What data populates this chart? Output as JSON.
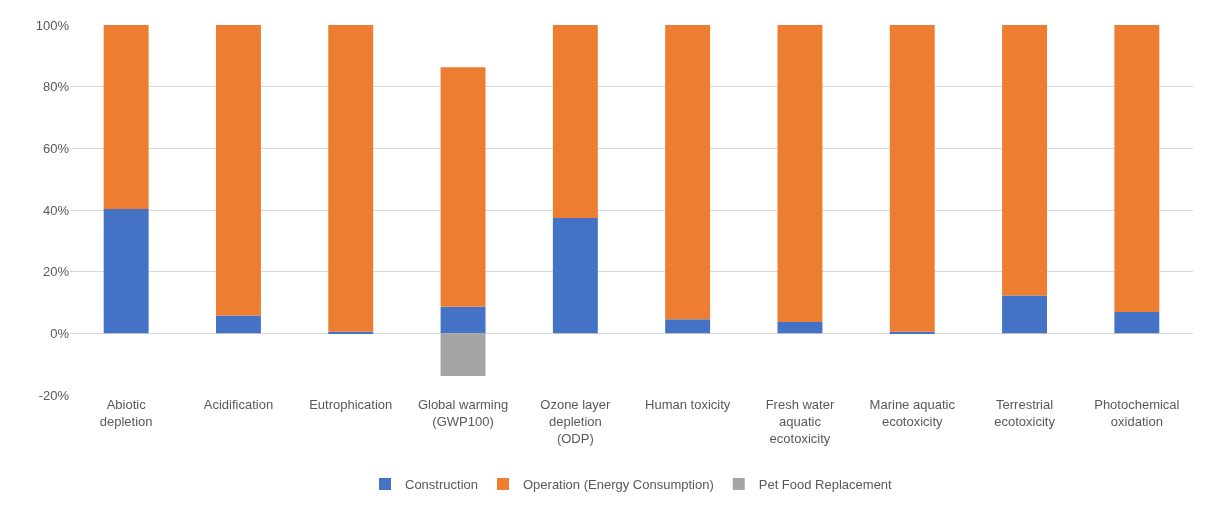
{
  "chart_data": {
    "type": "bar",
    "stacked": true,
    "categories": [
      "Abiotic depletion",
      "Acidification",
      "Eutrophication",
      "Global warming (GWP100)",
      "Ozone layer depletion (ODP)",
      "Human toxicity",
      "Fresh water aquatic ecotoxicity",
      "Marine aquatic ecotoxicity",
      "Terrestrial ecotoxicity",
      "Photochemical oxidation"
    ],
    "series": [
      {
        "name": "Construction",
        "color": "#4472c4",
        "values": [
          40.3,
          5.8,
          0.5,
          8.6,
          37.4,
          4.6,
          3.7,
          0.5,
          12.3,
          6.9
        ]
      },
      {
        "name": "Operation (Energy Consumption)",
        "color": "#ed7d31",
        "values": [
          59.7,
          94.2,
          99.5,
          77.7,
          62.6,
          95.4,
          96.3,
          99.5,
          87.7,
          93.1
        ]
      },
      {
        "name": "Pet Food Replacement",
        "color": "#a5a5a5",
        "values": [
          0,
          0,
          0,
          -13.8,
          0,
          0,
          0,
          0,
          0,
          0
        ]
      }
    ],
    "ylim": [
      -20,
      100
    ],
    "yticks": [
      {
        "value": -20,
        "label": "-20%"
      },
      {
        "value": 0,
        "label": "0%"
      },
      {
        "value": 20,
        "label": "20%"
      },
      {
        "value": 40,
        "label": "40%"
      },
      {
        "value": 60,
        "label": "60%"
      },
      {
        "value": 80,
        "label": "80%"
      },
      {
        "value": 100,
        "label": "100%"
      }
    ],
    "grid": "y",
    "legend": "bottom"
  }
}
